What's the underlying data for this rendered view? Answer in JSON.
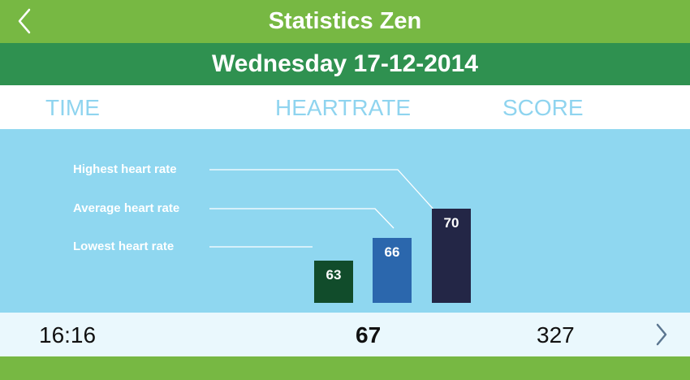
{
  "header": {
    "title": "Statistics Zen",
    "back_icon": "chevron-left-icon"
  },
  "date": "Wednesday 17-12-2014",
  "columns": {
    "time": "TIME",
    "heartrate": "HEARTRATE",
    "score": "SCORE"
  },
  "chart": {
    "labels": {
      "highest": "Highest heart rate",
      "average": "Average heart rate",
      "lowest": "Lowest heart rate"
    },
    "bars": [
      {
        "label": "63",
        "value": 63,
        "color": "#114c2b"
      },
      {
        "label": "66",
        "value": 66,
        "color": "#2b67ad"
      },
      {
        "label": "70",
        "value": 70,
        "color": "#232646"
      }
    ]
  },
  "summary": {
    "time": "16:16",
    "heartrate": "67",
    "score": "327",
    "next_icon": "chevron-right-icon"
  },
  "colors": {
    "top_bar": "#77b843",
    "date_bar": "#2f9150",
    "chart_bg": "#8fd7f0",
    "header_text": "#8fd4ef",
    "summary_bg": "#eaf8fd"
  }
}
